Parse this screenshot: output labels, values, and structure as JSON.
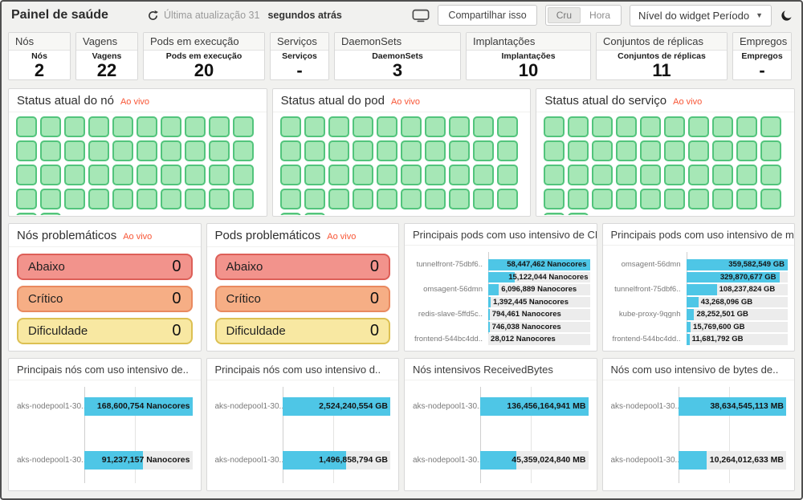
{
  "header": {
    "title": "Painel de saúde",
    "last_update_prefix": "Última atualização 31",
    "last_update_suffix": "segundos atrás",
    "share_button": "Compartilhar isso",
    "toggle": {
      "options": [
        "Cru",
        "Hora"
      ],
      "selected": "Cru"
    },
    "widget_dropdown": "Nível do widget Período"
  },
  "stats": [
    {
      "title": "Nós",
      "label": "Nós",
      "value": "2"
    },
    {
      "title": "Vagens",
      "label": "Vagens",
      "value": "22"
    },
    {
      "title": "Pods em execução",
      "label": "Pods em execução",
      "value": "20"
    },
    {
      "title": "Serviços",
      "label": "Serviços",
      "value": "-"
    },
    {
      "title": "DaemonSets",
      "label": "DaemonSets",
      "value": "3"
    },
    {
      "title": "Implantações",
      "label": "Implantações",
      "value": "10"
    },
    {
      "title": "Conjuntos de réplicas",
      "label": "Conjuntos de réplicas",
      "value": "11"
    },
    {
      "title": "Empregos",
      "label": "Empregos",
      "value": "-"
    }
  ],
  "status_panels": [
    {
      "title": "Status atual do nó",
      "live": "Ao vivo",
      "squares": 42,
      "status": "healthy"
    },
    {
      "title": "Status atual do pod",
      "live": "Ao vivo",
      "squares": 42,
      "status": "healthy"
    },
    {
      "title": "Status atual do serviço",
      "live": "Ao vivo",
      "squares": 42,
      "status": "healthy"
    }
  ],
  "problem_panels": [
    {
      "title": "Nós problemáticos",
      "live": "Ao vivo",
      "rows": [
        {
          "label": "Abaixo",
          "value": "0",
          "severity": "down"
        },
        {
          "label": "Crítico",
          "value": "0",
          "severity": "critical"
        },
        {
          "label": "Dificuldade",
          "value": "0",
          "severity": "warning"
        }
      ]
    },
    {
      "title": "Pods problemáticos",
      "live": "Ao vivo",
      "rows": [
        {
          "label": "Abaixo",
          "value": "0",
          "severity": "down"
        },
        {
          "label": "Crítico",
          "value": "0",
          "severity": "critical"
        },
        {
          "label": "Dificuldade",
          "value": "0",
          "severity": "warning"
        }
      ]
    }
  ],
  "chart_data": [
    {
      "type": "bar",
      "orientation": "horizontal",
      "title": "Principais pods com uso intensivo de CPU",
      "unit": "Nanocores",
      "value_label_position": "after-fill",
      "grid": false,
      "bars": [
        {
          "label": "tunnelfront-75dbf6..",
          "value": 58447462,
          "display": "58,447,462 Nanocores"
        },
        {
          "label": "",
          "value": 15122044,
          "display": "15,122,044 Nanocores"
        },
        {
          "label": "omsagent-56dmn",
          "value": 6096889,
          "display": "6,096,889 Nanocores"
        },
        {
          "label": "",
          "value": 1392445,
          "display": "1,392,445 Nanocores"
        },
        {
          "label": "redis-slave-5ffd5c..",
          "value": 794461,
          "display": "794,461 Nanocores"
        },
        {
          "label": "",
          "value": 746038,
          "display": "746,038 Nanocores"
        },
        {
          "label": "frontend-544bc4dd..",
          "value": 28012,
          "display": "28,012 Nanocores"
        }
      ]
    },
    {
      "type": "bar",
      "orientation": "horizontal",
      "title": "Principais pods com uso intensivo de me...",
      "unit": "GB",
      "value_label_position": "after-fill",
      "grid": false,
      "bars": [
        {
          "label": "omsagent-56dmn",
          "value": 359582549,
          "display": "359,582,549 GB"
        },
        {
          "label": "",
          "value": 329870677,
          "display": "329,870,677 GB"
        },
        {
          "label": "tunnelfront-75dbf6..",
          "value": 108237824,
          "display": "108,237,824 GB"
        },
        {
          "label": "",
          "value": 43268096,
          "display": "43,268,096 GB"
        },
        {
          "label": "kube-proxy-9qgnh",
          "value": 28252501,
          "display": "28,252,501 GB"
        },
        {
          "label": "",
          "value": 15769600,
          "display": "15,769,600 GB"
        },
        {
          "label": "frontend-544bc4dd..",
          "value": 11681792,
          "display": "11,681,792 GB"
        }
      ]
    },
    {
      "type": "bar",
      "orientation": "horizontal",
      "title": "Principais nós com uso intensivo de..",
      "unit": "Nanocores",
      "value_label_position": "track-end",
      "grid": true,
      "bars": [
        {
          "label": "aks-nodepool1-30..",
          "value": 168600754,
          "display": "168,600,754 Nanocores"
        },
        {
          "label": "aks-nodepool1-30..",
          "value": 91237157,
          "display": "91,237,157 Nanocores"
        }
      ]
    },
    {
      "type": "bar",
      "orientation": "horizontal",
      "title": "Principais nós com uso intensivo d..",
      "unit": "GB",
      "value_label_position": "track-end",
      "grid": true,
      "bars": [
        {
          "label": "aks-nodepool1-30..",
          "value": 2524240554,
          "display": "2,524,240,554 GB"
        },
        {
          "label": "aks-nodepool1-30..",
          "value": 1496858794,
          "display": "1,496,858,794 GB"
        }
      ]
    },
    {
      "type": "bar",
      "orientation": "horizontal",
      "title": "Nós intensivos ReceivedBytes",
      "unit": "MB",
      "value_label_position": "track-end",
      "grid": true,
      "bars": [
        {
          "label": "aks-nodepool1-30..",
          "value": 136456164941,
          "display": "136,456,164,941 MB"
        },
        {
          "label": "aks-nodepool1-30..",
          "value": 45359024840,
          "display": "45,359,024,840 MB"
        }
      ]
    },
    {
      "type": "bar",
      "orientation": "horizontal",
      "title": "Nós com uso intensivo de bytes de..",
      "unit": "MB",
      "value_label_position": "track-end",
      "grid": true,
      "bars": [
        {
          "label": "aks-nodepool1-30..",
          "value": 38634545113,
          "display": "38,634,545,113 MB"
        },
        {
          "label": "aks-nodepool1-30..",
          "value": 10264012633,
          "display": "10,264,012,633 MB"
        }
      ]
    }
  ],
  "colors": {
    "accent_cyan": "#4ec6e6",
    "bar_track": "#ececec",
    "healthy_green_fill": "#a6e7b6",
    "healthy_green_border": "#52c47c",
    "live_red": "#f85535",
    "severity_down": "#f2938c",
    "severity_critical": "#f6ae85",
    "severity_warning": "#f8e8a2"
  }
}
